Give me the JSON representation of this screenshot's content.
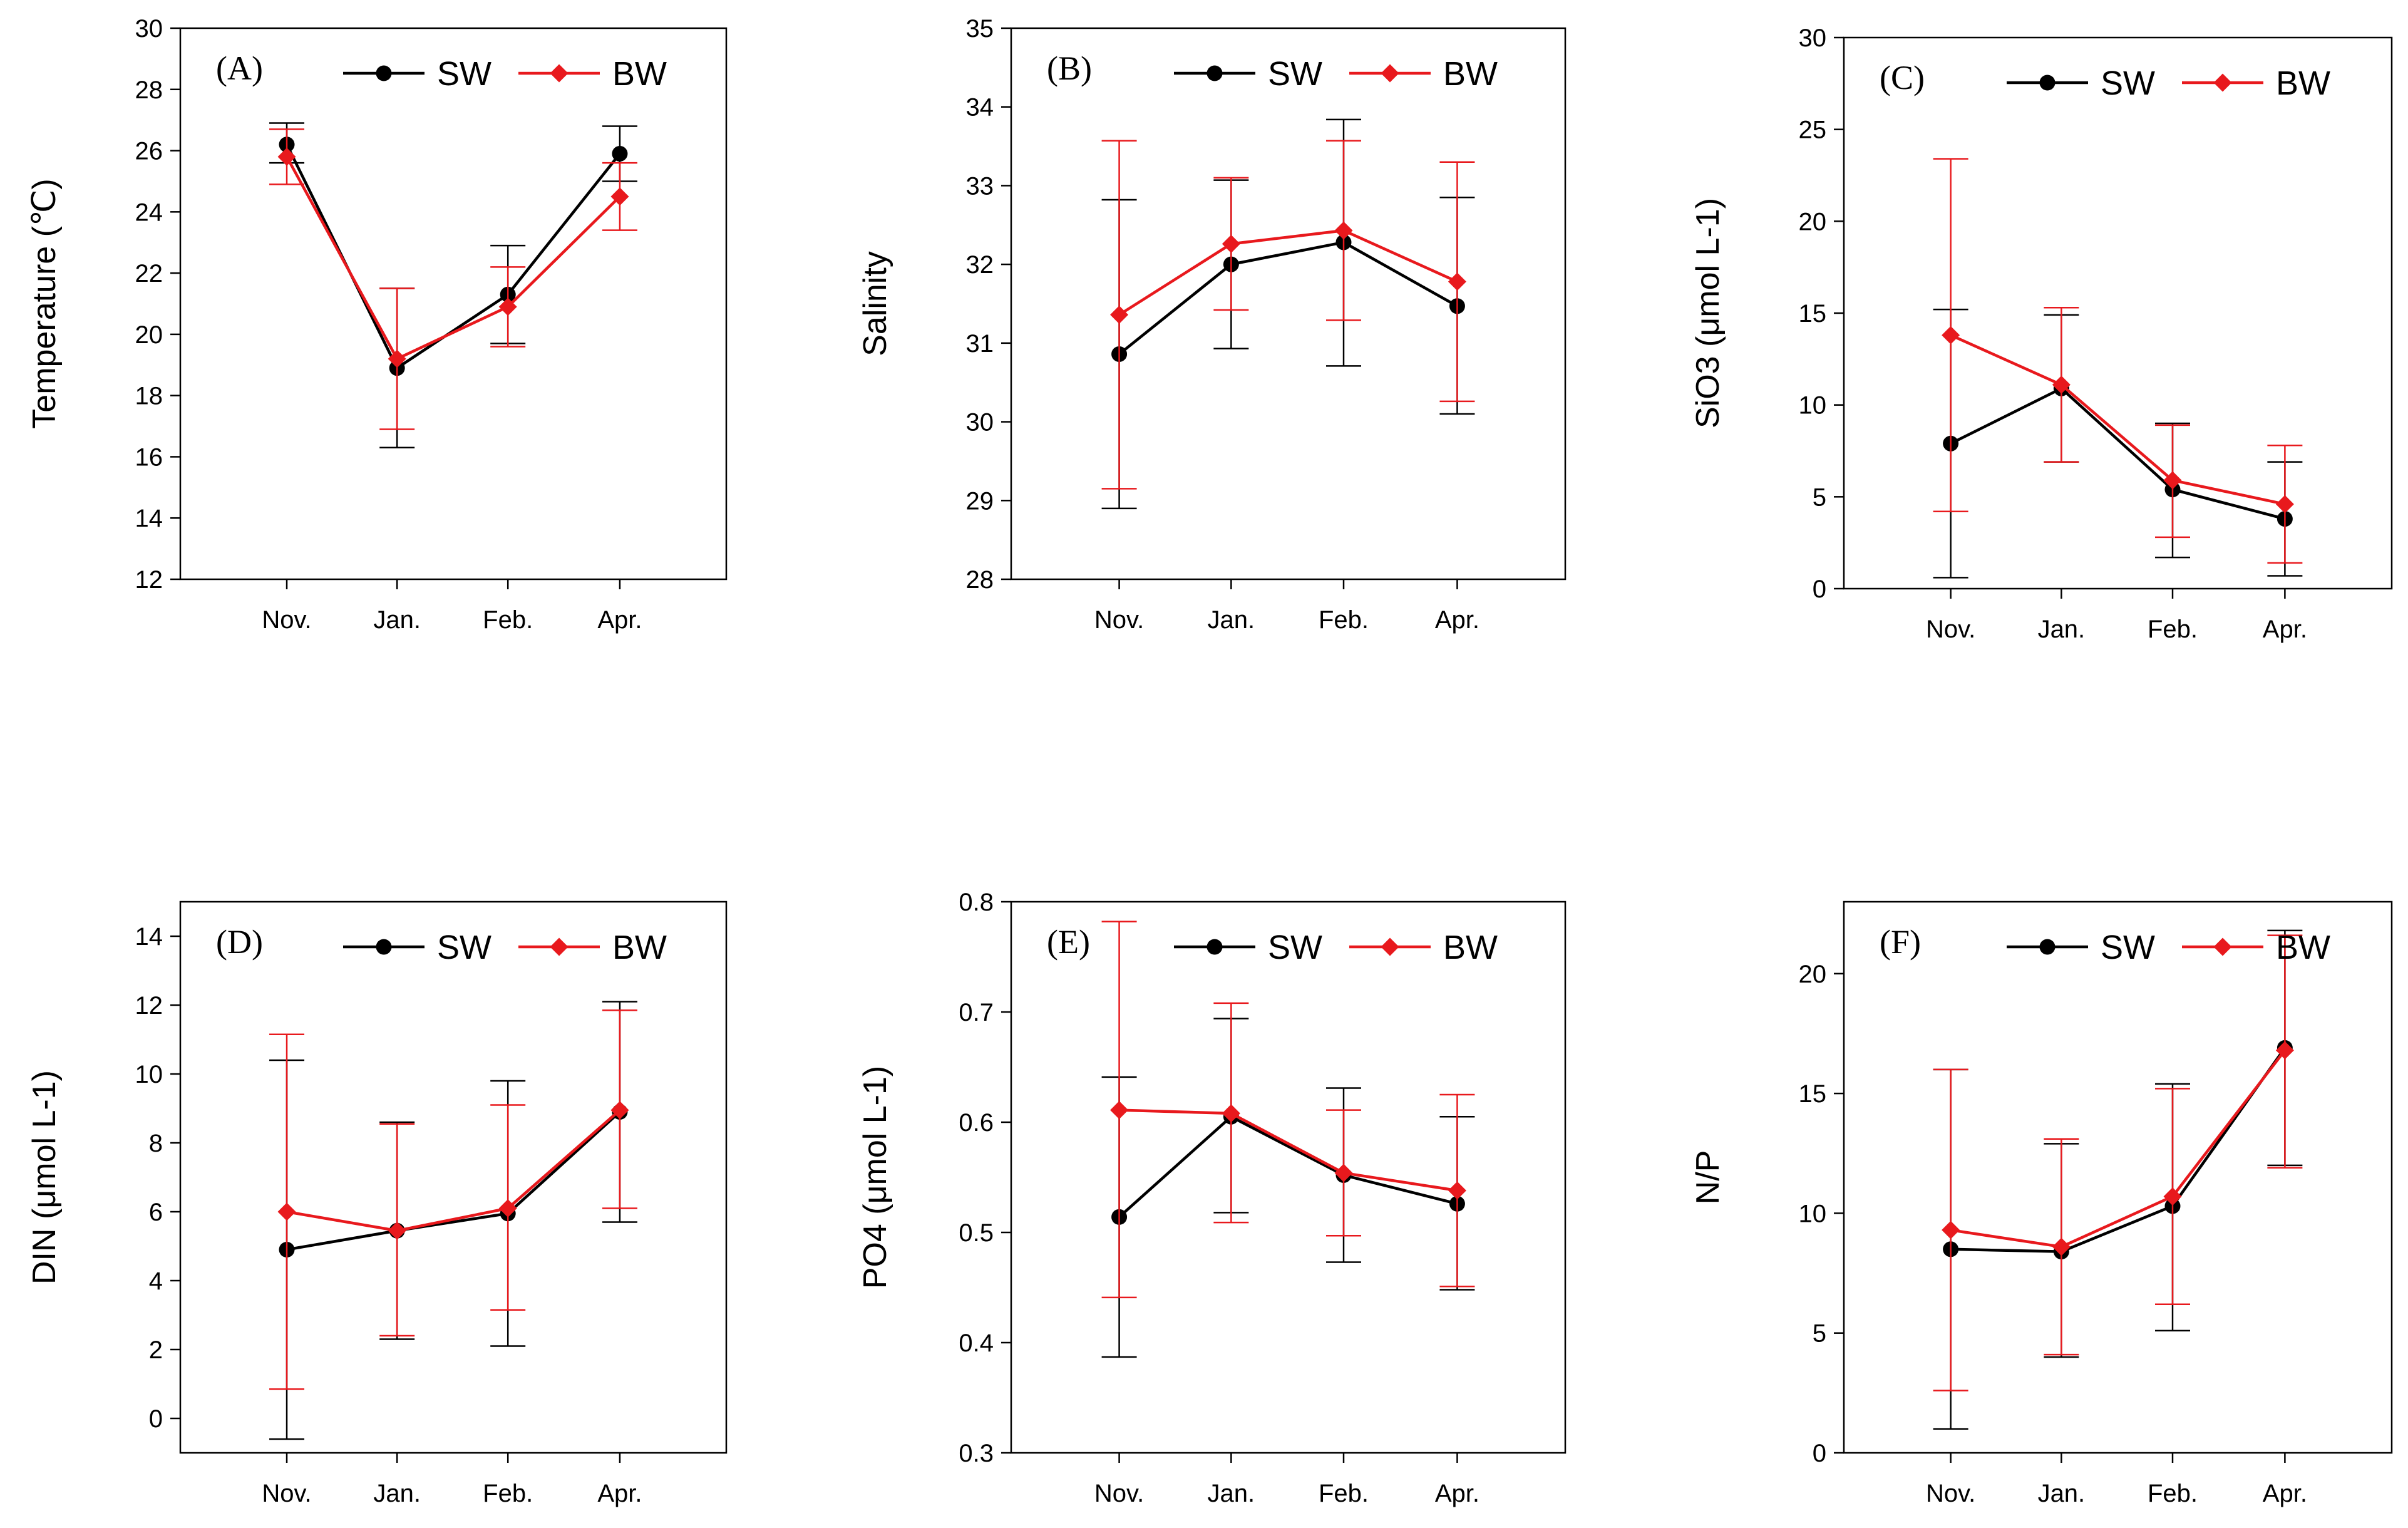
{
  "chart_data": [
    {
      "type": "line",
      "panel_label": "(A)",
      "ylabel": "Temperature (℃)",
      "xlabel": "",
      "categories": [
        "Nov.",
        "Jan.",
        "Feb.",
        "Apr."
      ],
      "ylim": [
        12,
        30
      ],
      "yticks": [
        12,
        14,
        16,
        18,
        20,
        22,
        24,
        26,
        28,
        30
      ],
      "legend": "top",
      "series": [
        {
          "name": "SW",
          "color": "#000000",
          "marker": "circle",
          "values": [
            26.2,
            18.9,
            21.3,
            25.9
          ],
          "err_low": [
            25.6,
            16.3,
            19.7,
            25.0
          ],
          "err_high": [
            26.9,
            21.5,
            22.9,
            26.8
          ]
        },
        {
          "name": "BW",
          "color": "#e8191d",
          "marker": "diamond",
          "values": [
            25.8,
            19.2,
            20.9,
            24.5
          ],
          "err_low": [
            24.9,
            16.9,
            19.6,
            23.4
          ],
          "err_high": [
            26.7,
            21.5,
            22.2,
            25.6
          ]
        }
      ]
    },
    {
      "type": "line",
      "panel_label": "(B)",
      "ylabel": "Salinity",
      "xlabel": "",
      "categories": [
        "Nov.",
        "Jan.",
        "Feb.",
        "Apr."
      ],
      "ylim": [
        28,
        35
      ],
      "yticks": [
        28,
        29,
        30,
        31,
        32,
        33,
        34,
        35
      ],
      "legend": "top",
      "series": [
        {
          "name": "SW",
          "color": "#000000",
          "marker": "circle",
          "values": [
            30.86,
            32.0,
            32.28,
            31.47
          ],
          "err_low": [
            28.9,
            30.93,
            30.71,
            30.1
          ],
          "err_high": [
            32.82,
            33.07,
            33.84,
            32.85
          ]
        },
        {
          "name": "BW",
          "color": "#e8191d",
          "marker": "diamond",
          "values": [
            31.36,
            32.26,
            32.43,
            31.78
          ],
          "err_low": [
            29.15,
            31.42,
            31.29,
            30.26
          ],
          "err_high": [
            33.57,
            33.1,
            33.57,
            33.3
          ]
        }
      ]
    },
    {
      "type": "line",
      "panel_label": "(C)",
      "ylabel": "SiO3 (μmol L-1)",
      "xlabel": "",
      "categories": [
        "Nov.",
        "Jan.",
        "Feb.",
        "Apr."
      ],
      "ylim": [
        0,
        30
      ],
      "yticks": [
        0,
        5,
        10,
        15,
        20,
        25,
        30
      ],
      "legend": "top",
      "series": [
        {
          "name": "SW",
          "color": "#000000",
          "marker": "circle",
          "values": [
            7.9,
            10.9,
            5.4,
            3.8
          ],
          "err_low": [
            0.6,
            6.9,
            1.7,
            0.7
          ],
          "err_high": [
            15.2,
            14.9,
            9.0,
            6.9
          ]
        },
        {
          "name": "BW",
          "color": "#e8191d",
          "marker": "diamond",
          "values": [
            13.8,
            11.1,
            5.9,
            4.6
          ],
          "err_low": [
            4.2,
            6.9,
            2.8,
            1.4
          ],
          "err_high": [
            23.4,
            15.3,
            8.9,
            7.8
          ]
        }
      ]
    },
    {
      "type": "line",
      "panel_label": "(D)",
      "ylabel": "DIN  (μmol L-1)",
      "xlabel": "",
      "categories": [
        "Nov.",
        "Jan.",
        "Feb.",
        "Apr."
      ],
      "ylim": [
        -1,
        15
      ],
      "yticks": [
        0,
        2,
        4,
        6,
        8,
        10,
        12,
        14
      ],
      "legend": "top",
      "series": [
        {
          "name": "SW",
          "color": "#000000",
          "marker": "circle",
          "values": [
            4.9,
            5.45,
            5.95,
            8.9
          ],
          "err_low": [
            -0.6,
            2.3,
            2.1,
            5.7
          ],
          "err_high": [
            10.4,
            8.6,
            9.8,
            12.1
          ]
        },
        {
          "name": "BW",
          "color": "#e8191d",
          "marker": "diamond",
          "values": [
            6.0,
            5.45,
            6.1,
            8.95
          ],
          "err_low": [
            0.85,
            2.4,
            3.15,
            6.1
          ],
          "err_high": [
            11.15,
            8.55,
            9.1,
            11.85
          ]
        }
      ]
    },
    {
      "type": "line",
      "panel_label": "(E)",
      "ylabel": "PO4 (μmol L-1)",
      "xlabel": "",
      "categories": [
        "Nov.",
        "Jan.",
        "Feb.",
        "Apr."
      ],
      "ylim": [
        0.3,
        0.8
      ],
      "yticks": [
        0.3,
        0.4,
        0.5,
        0.6,
        0.7,
        0.8
      ],
      "legend": "top",
      "series": [
        {
          "name": "SW",
          "color": "#000000",
          "marker": "circle",
          "values": [
            0.514,
            0.605,
            0.552,
            0.526
          ],
          "err_low": [
            0.387,
            0.518,
            0.473,
            0.448
          ],
          "err_high": [
            0.641,
            0.694,
            0.631,
            0.605
          ]
        },
        {
          "name": "BW",
          "color": "#e8191d",
          "marker": "diamond",
          "values": [
            0.611,
            0.608,
            0.554,
            0.538
          ],
          "err_low": [
            0.441,
            0.509,
            0.497,
            0.451
          ],
          "err_high": [
            0.782,
            0.708,
            0.611,
            0.625
          ]
        }
      ]
    },
    {
      "type": "line",
      "panel_label": "(F)",
      "ylabel": "N/P",
      "xlabel": "",
      "categories": [
        "Nov.",
        "Jan.",
        "Feb.",
        "Apr."
      ],
      "ylim": [
        0,
        23
      ],
      "yticks": [
        0,
        5,
        10,
        15,
        20
      ],
      "legend": "top",
      "series": [
        {
          "name": "SW",
          "color": "#000000",
          "marker": "circle",
          "values": [
            8.5,
            8.4,
            10.3,
            16.9
          ],
          "err_low": [
            1.0,
            4.0,
            5.1,
            12.0
          ],
          "err_high": [
            16.0,
            12.9,
            15.4,
            21.8
          ]
        },
        {
          "name": "BW",
          "color": "#e8191d",
          "marker": "diamond",
          "values": [
            9.3,
            8.6,
            10.7,
            16.8
          ],
          "err_low": [
            2.6,
            4.1,
            6.2,
            11.9
          ],
          "err_high": [
            16.0,
            13.1,
            15.2,
            21.6
          ]
        }
      ]
    }
  ]
}
